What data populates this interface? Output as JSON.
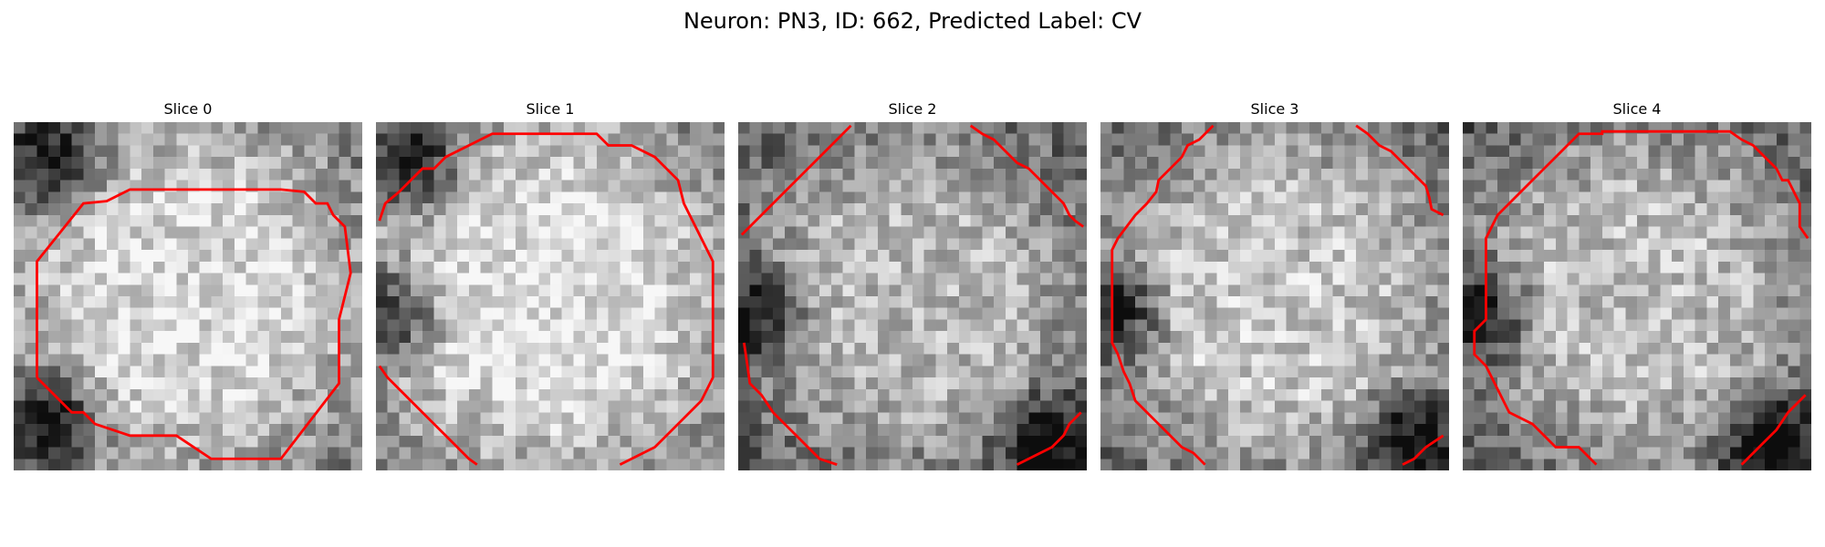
{
  "figure": {
    "title": "Neuron: PN3, ID: 662, Predicted Label: CV",
    "contour_color": "#ff0000"
  },
  "panels": [
    {
      "title": "Slice 0",
      "seed": 11,
      "center_brightness": 0.85,
      "dark_corners": [
        "top-left",
        "bottom-left"
      ]
    },
    {
      "title": "Slice 1",
      "seed": 23,
      "center_brightness": 0.88,
      "dark_corners": [
        "top-left",
        "left"
      ]
    },
    {
      "title": "Slice 2",
      "seed": 37,
      "center_brightness": 0.72,
      "dark_corners": [
        "left",
        "bottom-right"
      ]
    },
    {
      "title": "Slice 3",
      "seed": 41,
      "center_brightness": 0.78,
      "dark_corners": [
        "bottom-right",
        "left"
      ]
    },
    {
      "title": "Slice 4",
      "seed": 53,
      "center_brightness": 0.74,
      "dark_corners": [
        "bottom-right",
        "left"
      ]
    }
  ]
}
